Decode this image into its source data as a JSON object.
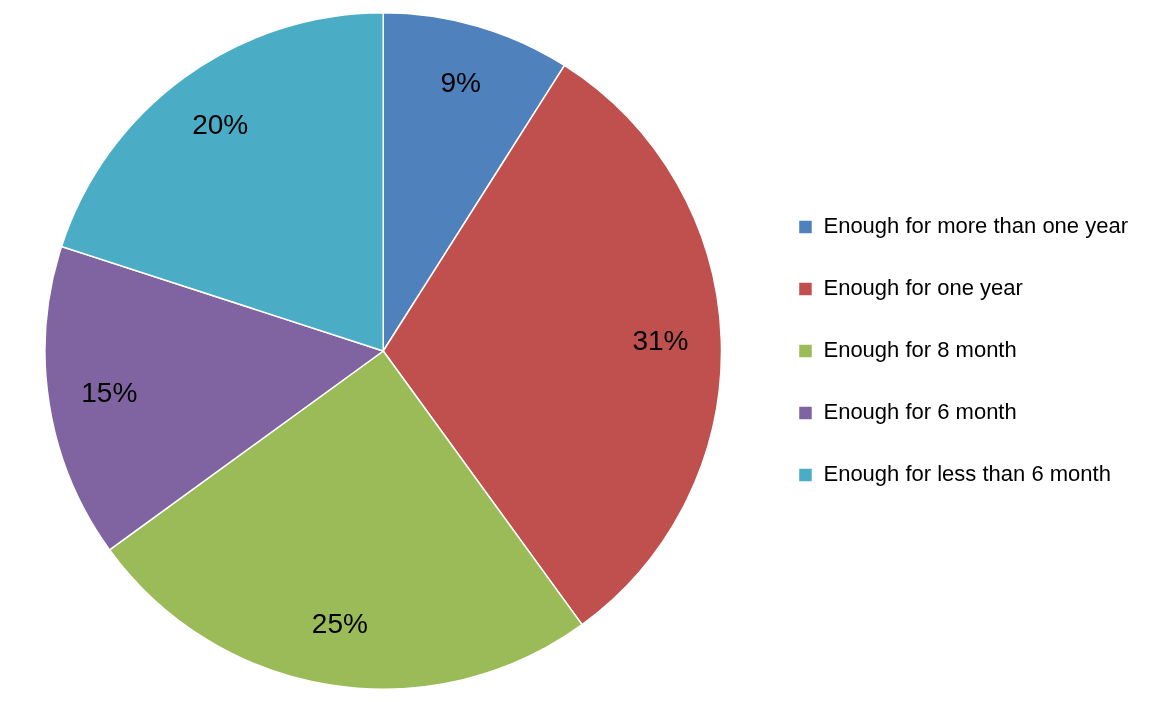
{
  "chart_data": {
    "type": "pie",
    "categories": [
      "Enough for more than one year",
      "Enough for one year",
      "Enough for 8 month",
      "Enough for 6 month",
      "Enough for less than 6 month"
    ],
    "values": [
      9,
      31,
      25,
      15,
      20
    ],
    "colors": [
      "#4f81bd",
      "#c0504d",
      "#9bbb59",
      "#8064a2",
      "#4bacc6"
    ],
    "value_labels": [
      "9%",
      "31%",
      "25%",
      "15%",
      "20%"
    ],
    "legend": "right"
  }
}
